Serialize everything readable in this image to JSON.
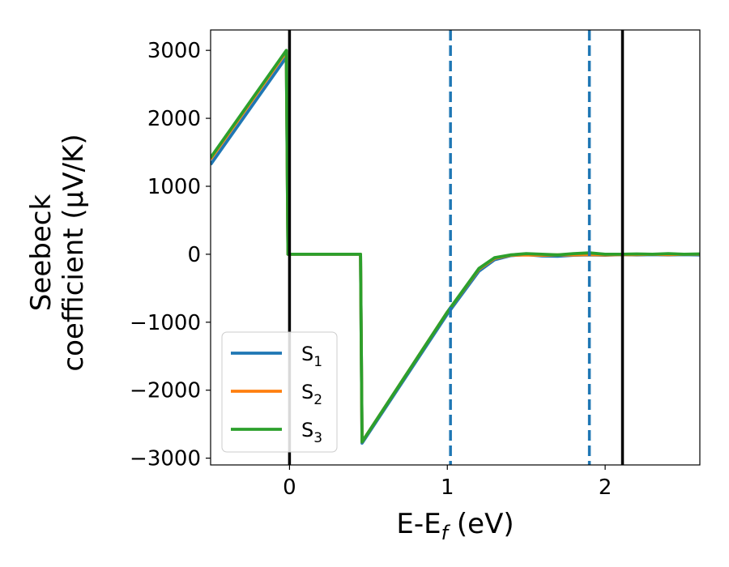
{
  "chart_data": {
    "type": "line",
    "xlabel": {
      "main": "E-E",
      "sub": "f",
      "unit": " (eV)"
    },
    "ylabel": {
      "line1": "Seebeck",
      "line2": "coefficient  (μV/K)"
    },
    "xlim": [
      -0.5,
      2.6
    ],
    "ylim": [
      -3100,
      3300
    ],
    "x_ticks": [
      0,
      1,
      2
    ],
    "x_tick_labels": [
      "0",
      "1",
      "2"
    ],
    "y_ticks": [
      3000,
      2000,
      1000,
      0,
      -1000,
      -2000,
      -3000
    ],
    "y_tick_labels": [
      "3000",
      "2000",
      "1000",
      "0",
      "−1000",
      "−2000",
      "−3000"
    ],
    "grid": false,
    "legend_position": "lower-left",
    "series": [
      {
        "name": "S",
        "name_sub": "1",
        "color": "#1f77b4",
        "x": [
          -0.5,
          -0.02,
          -0.01,
          0.45,
          0.46,
          1.0,
          1.2,
          1.3,
          1.4,
          1.5,
          1.6,
          1.7,
          1.8,
          1.9,
          2.0,
          2.1,
          2.2,
          2.3,
          2.4,
          2.5,
          2.6
        ],
        "y": [
          1320,
          2900,
          0,
          0,
          -2780,
          -880,
          -250,
          -80,
          -20,
          -5,
          -25,
          -30,
          -15,
          -10,
          -15,
          -5,
          -10,
          -5,
          -10,
          -5,
          -10
        ]
      },
      {
        "name": "S",
        "name_sub": "2",
        "color": "#ff7f0e",
        "x": [
          -0.5,
          -0.02,
          -0.01,
          0.45,
          0.46,
          1.0,
          1.2,
          1.3,
          1.4,
          1.5,
          1.6,
          1.7,
          1.8,
          1.9,
          2.0,
          2.1,
          2.2,
          2.3,
          2.4,
          2.5,
          2.6
        ],
        "y": [
          1400,
          2980,
          0,
          0,
          -2760,
          -850,
          -220,
          -60,
          -15,
          -10,
          -15,
          -10,
          -10,
          -5,
          -10,
          -5,
          -5,
          0,
          -5,
          0,
          0
        ]
      },
      {
        "name": "S",
        "name_sub": "3",
        "color": "#2ca02c",
        "x": [
          -0.5,
          -0.02,
          -0.01,
          0.45,
          0.46,
          1.0,
          1.2,
          1.3,
          1.4,
          1.5,
          1.6,
          1.7,
          1.8,
          1.9,
          2.0,
          2.1,
          2.2,
          2.3,
          2.4,
          2.5,
          2.6
        ],
        "y": [
          1420,
          3000,
          0,
          0,
          -2760,
          -850,
          -210,
          -50,
          -10,
          10,
          0,
          -10,
          10,
          20,
          0,
          0,
          5,
          0,
          10,
          0,
          5
        ]
      }
    ],
    "vertical_lines": [
      {
        "x": 0,
        "style": "solid",
        "color": "#000000"
      },
      {
        "x": 1.02,
        "style": "dashed",
        "color": "#1f77b4"
      },
      {
        "x": 1.9,
        "style": "dashed",
        "color": "#1f77b4"
      },
      {
        "x": 2.11,
        "style": "solid",
        "color": "#000000"
      }
    ]
  }
}
